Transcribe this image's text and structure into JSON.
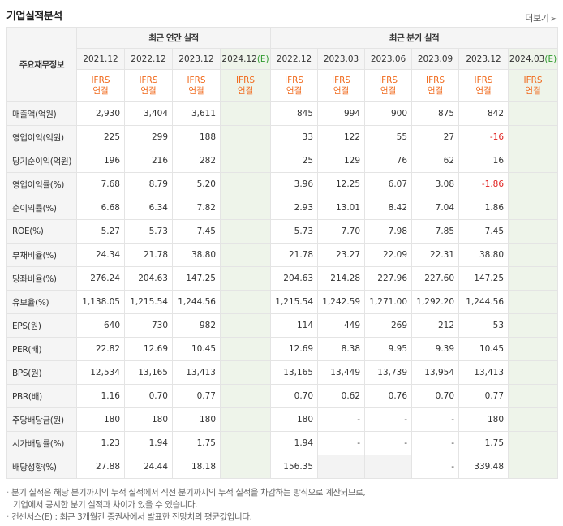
{
  "title": "기업실적분석",
  "more": "더보기",
  "header": {
    "corner": "주요재무정보",
    "annual_group": "최근 연간 실적",
    "quarter_group": "최근 분기 실적",
    "periods": [
      "2021.12",
      "2022.12",
      "2023.12",
      "2024.12",
      "2022.12",
      "2023.03",
      "2023.06",
      "2023.09",
      "2023.12",
      "2024.03"
    ],
    "estimate_suffix": "(E)",
    "ifrs_top": "IFRS",
    "ifrs_bottom": "연결"
  },
  "rows": [
    {
      "label": "매출액(억원)",
      "values": [
        "2,930",
        "3,404",
        "3,611",
        "",
        "845",
        "994",
        "900",
        "875",
        "842",
        ""
      ]
    },
    {
      "label": "영업이익(억원)",
      "values": [
        "225",
        "299",
        "188",
        "",
        "33",
        "122",
        "55",
        "27",
        "-16",
        ""
      ]
    },
    {
      "label": "당기순이익(억원)",
      "values": [
        "196",
        "216",
        "282",
        "",
        "25",
        "129",
        "76",
        "62",
        "16",
        ""
      ]
    },
    {
      "label": "영업이익률(%)",
      "values": [
        "7.68",
        "8.79",
        "5.20",
        "",
        "3.96",
        "12.25",
        "6.07",
        "3.08",
        "-1.86",
        ""
      ]
    },
    {
      "label": "순이익률(%)",
      "values": [
        "6.68",
        "6.34",
        "7.82",
        "",
        "2.93",
        "13.01",
        "8.42",
        "7.04",
        "1.86",
        ""
      ]
    },
    {
      "label": "ROE(%)",
      "values": [
        "5.27",
        "5.73",
        "7.45",
        "",
        "5.73",
        "7.70",
        "7.98",
        "7.85",
        "7.45",
        ""
      ]
    },
    {
      "label": "부채비율(%)",
      "values": [
        "24.34",
        "21.78",
        "38.80",
        "",
        "21.78",
        "23.27",
        "22.09",
        "22.31",
        "38.80",
        ""
      ]
    },
    {
      "label": "당좌비율(%)",
      "values": [
        "276.24",
        "204.63",
        "147.25",
        "",
        "204.63",
        "214.28",
        "227.96",
        "227.60",
        "147.25",
        ""
      ]
    },
    {
      "label": "유보율(%)",
      "values": [
        "1,138.05",
        "1,215.54",
        "1,244.56",
        "",
        "1,215.54",
        "1,242.59",
        "1,271.00",
        "1,292.20",
        "1,244.56",
        ""
      ]
    },
    {
      "label": "EPS(원)",
      "values": [
        "640",
        "730",
        "982",
        "",
        "114",
        "449",
        "269",
        "212",
        "53",
        ""
      ]
    },
    {
      "label": "PER(배)",
      "values": [
        "22.82",
        "12.69",
        "10.45",
        "",
        "12.69",
        "8.38",
        "9.95",
        "9.39",
        "10.45",
        ""
      ]
    },
    {
      "label": "BPS(원)",
      "values": [
        "12,534",
        "13,165",
        "13,413",
        "",
        "13,165",
        "13,449",
        "13,739",
        "13,954",
        "13,413",
        ""
      ]
    },
    {
      "label": "PBR(배)",
      "values": [
        "1.16",
        "0.70",
        "0.77",
        "",
        "0.70",
        "0.62",
        "0.76",
        "0.70",
        "0.77",
        ""
      ]
    },
    {
      "label": "주당배당금(원)",
      "values": [
        "180",
        "180",
        "180",
        "",
        "180",
        "-",
        "-",
        "-",
        "180",
        ""
      ]
    },
    {
      "label": "시가배당률(%)",
      "values": [
        "1.23",
        "1.94",
        "1.75",
        "",
        "1.94",
        "-",
        "-",
        "-",
        "1.75",
        ""
      ]
    },
    {
      "label": "배당성향(%)",
      "values": [
        "27.88",
        "24.44",
        "18.18",
        "",
        "156.35",
        "",
        "",
        "-",
        "339.48",
        ""
      ]
    }
  ],
  "notes": [
    "분기 실적은 해당 분기까지의 누적 실적에서 직전 분기까지의 누적 실적을 차감하는 방식으로 계산되므로,",
    "기업에서 공시한 분기 실적과 차이가 있을 수 있습니다.",
    "컨센서스(E) : 최근 3개월간 증권사에서 발표한 전망치의 평균값입니다."
  ],
  "colors": {
    "ifrs": "#f06a1d",
    "negative": "#e0201e",
    "estimate_bg": "#eef4ea",
    "estimate_mark": "#2d9a2d"
  }
}
